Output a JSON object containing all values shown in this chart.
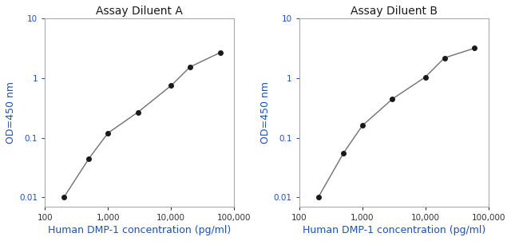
{
  "title_A": "Assay Diluent A",
  "title_B": "Assay Diluent B",
  "xlabel": "Human DMP-1 concentration (pg/ml)",
  "ylabel": "OD=450 nm",
  "xlim": [
    100,
    100000
  ],
  "ylim": [
    0.007,
    10
  ],
  "xticks": [
    100,
    1000,
    10000,
    100000
  ],
  "xticklabels": [
    "100",
    "1,000",
    "10,000",
    "100,000"
  ],
  "yticks": [
    0.01,
    0.1,
    1,
    10
  ],
  "yticklabels": [
    "0.01",
    "0.1",
    "1",
    "10"
  ],
  "x_A": [
    200,
    500,
    1000,
    3000,
    10000,
    20000,
    60000
  ],
  "y_A": [
    0.01,
    0.045,
    0.12,
    0.27,
    0.75,
    1.55,
    2.7
  ],
  "x_B": [
    200,
    500,
    1000,
    3000,
    10000,
    20000,
    60000
  ],
  "y_B": [
    0.01,
    0.055,
    0.16,
    0.45,
    1.05,
    2.2,
    3.2
  ],
  "line_color": "#707070",
  "dot_color": "#1a1a1a",
  "title_color": "#1a1a1a",
  "xlabel_color": "#1a50cc",
  "ylabel_color": "#1a50cc",
  "ytick_color": "#1a50cc",
  "xtick_color": "#333333",
  "background_color": "#ffffff",
  "spine_color": "#aaaaaa",
  "title_fontsize": 10,
  "label_fontsize": 9,
  "tick_fontsize": 7.5
}
